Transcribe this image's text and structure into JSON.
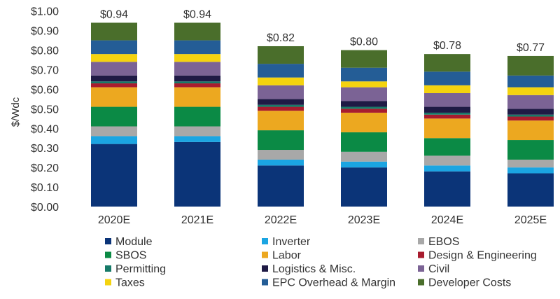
{
  "chart_data": {
    "type": "bar",
    "stacked": true,
    "ylabel": "$/Wdc",
    "ylim": [
      0,
      1.0
    ],
    "yticks": [
      "$0.00",
      "$0.10",
      "$0.20",
      "$0.30",
      "$0.40",
      "$0.50",
      "$0.60",
      "$0.70",
      "$0.80",
      "$0.90",
      "$1.00"
    ],
    "grid": false,
    "legend_position": "bottom",
    "categories": [
      "2020E",
      "2021E",
      "2022E",
      "2023E",
      "2024E",
      "2025E"
    ],
    "totals": [
      "$0.94",
      "$0.94",
      "$0.82",
      "$0.80",
      "$0.78",
      "$0.77"
    ],
    "series": [
      {
        "name": "Module",
        "color": "#0b3478",
        "values": [
          0.32,
          0.33,
          0.21,
          0.2,
          0.18,
          0.17
        ]
      },
      {
        "name": "Inverter",
        "color": "#1ba5e2",
        "values": [
          0.04,
          0.03,
          0.03,
          0.03,
          0.03,
          0.03
        ]
      },
      {
        "name": "EBOS",
        "color": "#a8a8a8",
        "values": [
          0.05,
          0.05,
          0.05,
          0.05,
          0.05,
          0.04
        ]
      },
      {
        "name": "SBOS",
        "color": "#0b8a45",
        "values": [
          0.1,
          0.1,
          0.1,
          0.1,
          0.09,
          0.1
        ]
      },
      {
        "name": "Labor",
        "color": "#eca820",
        "values": [
          0.1,
          0.1,
          0.1,
          0.1,
          0.1,
          0.1
        ]
      },
      {
        "name": "Design & Engineering",
        "color": "#a81c2e",
        "values": [
          0.02,
          0.02,
          0.02,
          0.02,
          0.02,
          0.02
        ]
      },
      {
        "name": "Permitting",
        "color": "#167a68",
        "values": [
          0.01,
          0.01,
          0.01,
          0.01,
          0.01,
          0.01
        ]
      },
      {
        "name": "Logistics & Misc.",
        "color": "#1f1a45",
        "values": [
          0.03,
          0.03,
          0.03,
          0.03,
          0.03,
          0.03
        ]
      },
      {
        "name": "Civil",
        "color": "#7b6395",
        "values": [
          0.07,
          0.07,
          0.07,
          0.07,
          0.07,
          0.07
        ]
      },
      {
        "name": "Taxes",
        "color": "#f4d30f",
        "values": [
          0.04,
          0.04,
          0.04,
          0.03,
          0.04,
          0.04
        ]
      },
      {
        "name": "EPC Overhead & Margin",
        "color": "#245d96",
        "values": [
          0.07,
          0.07,
          0.07,
          0.07,
          0.07,
          0.06
        ]
      },
      {
        "name": "Developer Costs",
        "color": "#4a6e2b",
        "values": [
          0.09,
          0.09,
          0.09,
          0.09,
          0.09,
          0.1
        ]
      }
    ]
  }
}
